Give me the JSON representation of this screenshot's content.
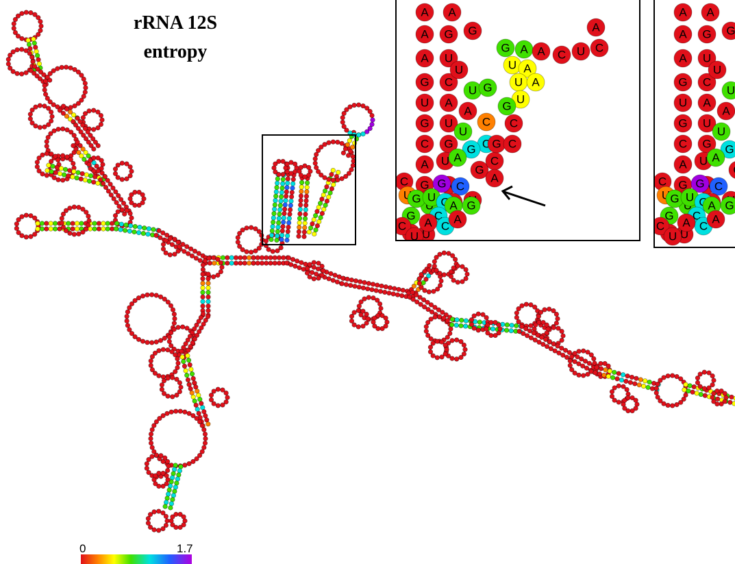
{
  "title": {
    "line1": "rRNA 12S",
    "line2": "entropy"
  },
  "scale": {
    "min_label": "0",
    "max_label": "1.7"
  },
  "colors": {
    "low_entropy": "#e0101a",
    "ramp": [
      "#e0101a",
      "#ff8000",
      "#ffff00",
      "#40e000",
      "#00e0e0",
      "#2060ff",
      "#a000e0"
    ],
    "border": "#000000"
  },
  "inset_left": {
    "nucleotides": [
      {
        "l": "A",
        "c": "#e0101a"
      },
      {
        "l": "A",
        "c": "#e0101a"
      },
      {
        "l": "G",
        "c": "#e0101a"
      },
      {
        "l": "A",
        "c": "#e0101a"
      },
      {
        "l": "G",
        "c": "#e0101a"
      },
      {
        "l": "A",
        "c": "#e0101a"
      },
      {
        "l": "U",
        "c": "#e0101a"
      },
      {
        "l": "G",
        "c": "#e0101a"
      },
      {
        "l": "C",
        "c": "#e0101a"
      },
      {
        "l": "U",
        "c": "#e0101a"
      },
      {
        "l": "A",
        "c": "#e0101a"
      },
      {
        "l": "G",
        "c": "#e0101a"
      },
      {
        "l": "U",
        "c": "#e0101a"
      },
      {
        "l": "C",
        "c": "#e0101a"
      },
      {
        "l": "G",
        "c": "#e0101a"
      },
      {
        "l": "A",
        "c": "#e0101a"
      },
      {
        "l": "U",
        "c": "#e0101a"
      },
      {
        "l": "C",
        "c": "#e0101a"
      },
      {
        "l": "G",
        "c": "#e0101a"
      },
      {
        "l": "A",
        "c": "#e0101a"
      },
      {
        "l": "U",
        "c": "#ff8000"
      },
      {
        "l": "A",
        "c": "#e0101a"
      },
      {
        "l": "G",
        "c": "#40e000"
      },
      {
        "l": "U",
        "c": "#40e000"
      },
      {
        "l": "A",
        "c": "#e0101a"
      },
      {
        "l": "U",
        "c": "#e0101a"
      },
      {
        "l": "U",
        "c": "#e0101a"
      },
      {
        "l": "G",
        "c": "#40e000"
      },
      {
        "l": "A",
        "c": "#40e000"
      },
      {
        "l": "U",
        "c": "#ffff00"
      },
      {
        "l": "A",
        "c": "#ffff00"
      },
      {
        "l": "U",
        "c": "#ffff00"
      },
      {
        "l": "A",
        "c": "#ffff00"
      },
      {
        "l": "U",
        "c": "#ffff00"
      },
      {
        "l": "G",
        "c": "#40e000"
      },
      {
        "l": "A",
        "c": "#e0101a"
      },
      {
        "l": "C",
        "c": "#e0101a"
      },
      {
        "l": "U",
        "c": "#e0101a"
      },
      {
        "l": "C",
        "c": "#e0101a"
      },
      {
        "l": "A",
        "c": "#e0101a"
      },
      {
        "l": "U",
        "c": "#40e000"
      },
      {
        "l": "G",
        "c": "#40e000"
      },
      {
        "l": "A",
        "c": "#e0101a"
      },
      {
        "l": "C",
        "c": "#ff8000"
      },
      {
        "l": "U",
        "c": "#40e000"
      },
      {
        "l": "C",
        "c": "#00e0e0"
      },
      {
        "l": "G",
        "c": "#00e0e0"
      },
      {
        "l": "A",
        "c": "#40e000"
      },
      {
        "l": "G",
        "c": "#e0101a"
      },
      {
        "l": "C",
        "c": "#e0101a"
      },
      {
        "l": "A",
        "c": "#e0101a"
      },
      {
        "l": "G",
        "c": "#e0101a"
      },
      {
        "l": "C",
        "c": "#e0101a"
      },
      {
        "l": "C",
        "c": "#e0101a"
      },
      {
        "l": "G",
        "c": "#a000e0"
      },
      {
        "l": "C",
        "c": "#2060ff"
      },
      {
        "l": "A",
        "c": "#e0101a"
      },
      {
        "l": "U",
        "c": "#e0101a"
      },
      {
        "l": "G",
        "c": "#40e000"
      },
      {
        "l": "U",
        "c": "#40e000"
      },
      {
        "l": "G",
        "c": "#00e0e0"
      },
      {
        "l": "A",
        "c": "#40e000"
      },
      {
        "l": "G",
        "c": "#40e000"
      },
      {
        "l": "C",
        "c": "#00e0e0"
      },
      {
        "l": "C",
        "c": "#00e0e0"
      },
      {
        "l": "A",
        "c": "#e0101a"
      },
      {
        "l": "C",
        "c": "#e0101a"
      },
      {
        "l": "U",
        "c": "#e0101a"
      },
      {
        "l": "A",
        "c": "#e0101a"
      }
    ]
  }
}
